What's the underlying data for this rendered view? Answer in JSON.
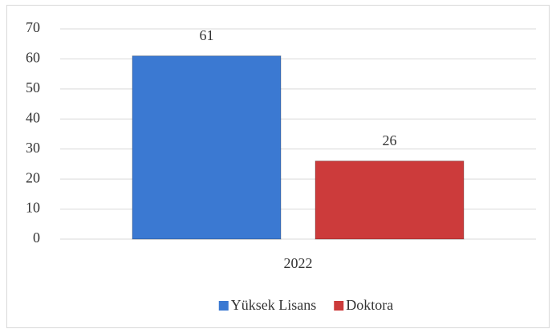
{
  "chart_data": {
    "type": "bar",
    "categories": [
      "2022"
    ],
    "series": [
      {
        "name": "Yüksek Lisans",
        "color": "#3b79d2",
        "values": [
          61
        ]
      },
      {
        "name": "Doktora",
        "color": "#cc3b3b",
        "values": [
          26
        ]
      }
    ],
    "ylim": [
      0,
      70
    ],
    "yticks": [
      0,
      10,
      20,
      30,
      40,
      50,
      60,
      70
    ],
    "grid": true,
    "legend": "bottom"
  }
}
